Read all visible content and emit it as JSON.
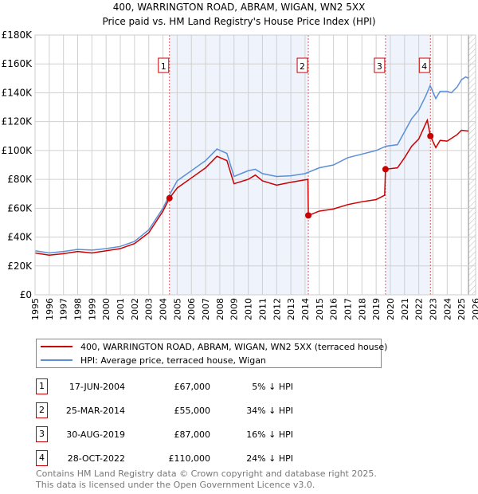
{
  "chart_data": {
    "type": "line",
    "title": "400, WARRINGTON ROAD, ABRAM, WIGAN, WN2 5XX",
    "subtitle": "Price paid vs. HM Land Registry's House Price Index (HPI)",
    "xlim": [
      1995,
      2026
    ],
    "ylim": [
      0,
      180000
    ],
    "y_ticks": [
      0,
      20000,
      40000,
      60000,
      80000,
      100000,
      120000,
      140000,
      160000,
      180000
    ],
    "y_tick_labels": [
      "£0",
      "£20K",
      "£40K",
      "£60K",
      "£80K",
      "£100K",
      "£120K",
      "£140K",
      "£160K",
      "£180K"
    ],
    "x_tick_labels": [
      "1995",
      "1996",
      "1997",
      "1998",
      "1999",
      "2000",
      "2001",
      "2002",
      "2003",
      "2004",
      "2005",
      "2006",
      "2007",
      "2008",
      "2009",
      "2010",
      "2011",
      "2012",
      "2013",
      "2014",
      "2015",
      "2016",
      "2017",
      "2018",
      "2019",
      "2020",
      "2021",
      "2022",
      "2023",
      "2024",
      "2025",
      "2026"
    ],
    "grid": true,
    "shaded_ranges": [
      [
        2004.46,
        2014.23
      ],
      [
        2019.66,
        2022.82
      ]
    ],
    "hatched_from": 2025.5,
    "series": [
      {
        "name": "400, WARRINGTON ROAD, ABRAM, WIGAN, WN2 5XX (terraced house)",
        "color": "#cc0000",
        "x": [
          1995,
          1996,
          1997,
          1998,
          1999,
          2000,
          2001,
          2002,
          2003,
          2004,
          2004.46,
          2005,
          2006,
          2007,
          2007.8,
          2008.5,
          2009,
          2010,
          2010.5,
          2011,
          2012,
          2013,
          2014.2,
          2014.23,
          2015,
          2016,
          2017,
          2018,
          2019,
          2019.6,
          2019.66,
          2020.5,
          2021,
          2021.5,
          2022,
          2022.6,
          2022.82,
          2023.2,
          2023.5,
          2024,
          2024.7,
          2025,
          2025.5
        ],
        "y": [
          29000,
          27500,
          28500,
          30000,
          29000,
          30500,
          32000,
          35500,
          43000,
          58000,
          67000,
          74000,
          81000,
          88000,
          96000,
          93000,
          77000,
          80000,
          83000,
          79000,
          76000,
          78000,
          80000,
          55000,
          58000,
          59500,
          62500,
          64500,
          66000,
          69000,
          87000,
          88000,
          95000,
          103000,
          108000,
          121000,
          110000,
          102000,
          107000,
          106500,
          111000,
          114000,
          113500
        ]
      },
      {
        "name": "HPI: Average price, terraced house, Wigan",
        "color": "#5b8fd6",
        "x": [
          1995,
          1996,
          1997,
          1998,
          1999,
          2000,
          2001,
          2002,
          2003,
          2004,
          2004.5,
          2005,
          2006,
          2007,
          2007.8,
          2008.5,
          2009,
          2010,
          2010.5,
          2011,
          2012,
          2013,
          2014,
          2015,
          2016,
          2017,
          2018,
          2019,
          2019.7,
          2020.5,
          2021,
          2021.5,
          2022,
          2022.5,
          2022.8,
          2023.2,
          2023.5,
          2024,
          2024.3,
          2024.7,
          2025,
          2025.3,
          2025.5
        ],
        "y": [
          30500,
          29000,
          30000,
          31500,
          31000,
          32000,
          33500,
          37000,
          45000,
          60000,
          70000,
          79000,
          86000,
          93000,
          101000,
          98000,
          82000,
          86000,
          87000,
          84000,
          82000,
          82500,
          84000,
          88000,
          90000,
          95000,
          97500,
          100000,
          103000,
          104000,
          113000,
          122000,
          128000,
          138000,
          145000,
          136000,
          141000,
          141000,
          140000,
          144000,
          149000,
          151000,
          150000
        ]
      }
    ],
    "sales": [
      {
        "label": "1",
        "x": 2004.46,
        "y": 67000
      },
      {
        "label": "2",
        "x": 2014.23,
        "y": 55000
      },
      {
        "label": "3",
        "x": 2019.66,
        "y": 87000
      },
      {
        "label": "4",
        "x": 2022.82,
        "y": 110000
      }
    ]
  },
  "legend": {
    "red": "400, WARRINGTON ROAD, ABRAM, WIGAN, WN2 5XX (terraced house)",
    "blue": "HPI: Average price, terraced house, Wigan"
  },
  "table": [
    {
      "num": "1",
      "date": "17-JUN-2004",
      "price": "£67,000",
      "hpi": "5% ↓ HPI"
    },
    {
      "num": "2",
      "date": "25-MAR-2014",
      "price": "£55,000",
      "hpi": "34% ↓ HPI"
    },
    {
      "num": "3",
      "date": "30-AUG-2019",
      "price": "£87,000",
      "hpi": "16% ↓ HPI"
    },
    {
      "num": "4",
      "date": "28-OCT-2022",
      "price": "£110,000",
      "hpi": "24% ↓ HPI"
    }
  ],
  "footer": [
    "Contains HM Land Registry data © Crown copyright and database right 2025.",
    "This data is licensed under the Open Government Licence v3.0."
  ]
}
